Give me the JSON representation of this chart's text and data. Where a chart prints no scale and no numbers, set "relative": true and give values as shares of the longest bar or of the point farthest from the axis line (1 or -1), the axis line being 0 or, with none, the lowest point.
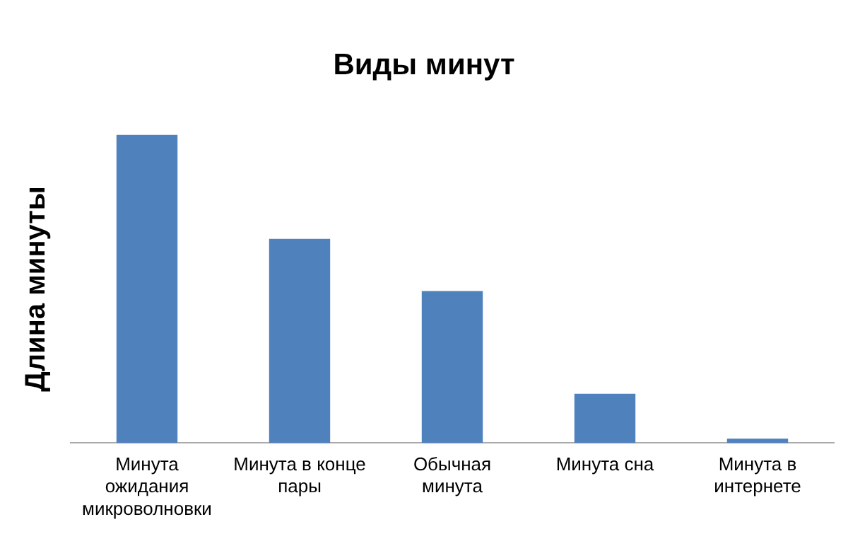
{
  "chart_data": {
    "type": "bar",
    "title": "Виды минут",
    "ylabel": "Длина минуты",
    "relative": true,
    "categories": [
      "Минута ожидания микроволновки",
      "Минута в конце пары",
      "Обычная минута",
      "Минута сна",
      "Минута в интернете"
    ],
    "values": [
      1,
      0.662,
      0.493,
      0.16,
      0.014
    ],
    "color": "#4f81bd"
  }
}
